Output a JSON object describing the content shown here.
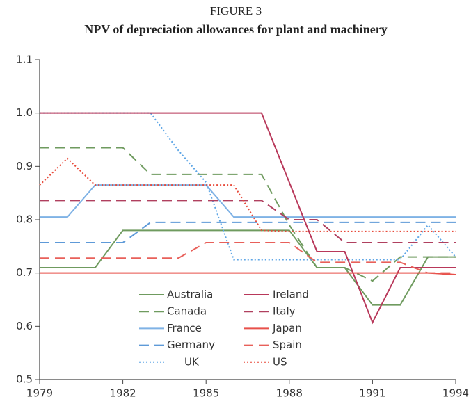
{
  "chart_data": {
    "type": "line",
    "title": "FIGURE 3",
    "subtitle": "NPV of depreciation allowances for plant and machinery",
    "x": [
      1979,
      1980,
      1981,
      1982,
      1983,
      1984,
      1985,
      1986,
      1987,
      1988,
      1989,
      1990,
      1991,
      1992,
      1993,
      1994
    ],
    "xlim": [
      1979,
      1994
    ],
    "xticks": [
      1979,
      1982,
      1985,
      1988,
      1991,
      1994
    ],
    "ylim": [
      0.5,
      1.1
    ],
    "yticks": [
      0.5,
      0.6,
      0.7,
      0.8,
      0.9,
      {
        "value": 1,
        "label": "1.0"
      },
      1.1
    ],
    "series": [
      {
        "name": "Australia",
        "color": "#6f9b5f",
        "dash": "solid",
        "values": [
          0.71,
          0.71,
          0.71,
          0.78,
          0.78,
          0.78,
          0.78,
          0.78,
          0.78,
          0.78,
          0.71,
          0.71,
          0.64,
          0.64,
          0.73,
          0.73
        ]
      },
      {
        "name": "Canada",
        "color": "#6f9b5f",
        "dash": "dashed",
        "values": [
          0.935,
          0.935,
          0.935,
          0.935,
          0.885,
          0.885,
          0.885,
          0.885,
          0.885,
          0.79,
          0.71,
          0.71,
          0.685,
          0.73,
          0.73,
          0.73
        ]
      },
      {
        "name": "France",
        "color": "#7fb2e5",
        "dash": "solid",
        "values": [
          0.805,
          0.805,
          0.865,
          0.865,
          0.865,
          0.865,
          0.865,
          0.805,
          0.805,
          0.805,
          0.805,
          0.805,
          0.805,
          0.805,
          0.805,
          0.805
        ]
      },
      {
        "name": "Germany",
        "color": "#5e9ad8",
        "dash": "dashed",
        "values": [
          0.757,
          0.757,
          0.757,
          0.757,
          0.795,
          0.795,
          0.795,
          0.795,
          0.795,
          0.795,
          0.795,
          0.795,
          0.795,
          0.795,
          0.795,
          0.795
        ]
      },
      {
        "name": "UK",
        "color": "#5ea6e6",
        "dash": "dotted",
        "values": [
          1.0,
          1.0,
          1.0,
          1.0,
          1.0,
          0.93,
          0.87,
          0.725,
          0.725,
          0.725,
          0.725,
          0.725,
          0.725,
          0.725,
          0.79,
          0.73
        ]
      },
      {
        "name": "Ireland",
        "color": "#b8385a",
        "dash": "solid",
        "values": [
          1.0,
          1.0,
          1.0,
          1.0,
          1.0,
          1.0,
          1.0,
          1.0,
          1.0,
          0.87,
          0.74,
          0.74,
          0.607,
          0.71,
          0.71,
          0.71
        ]
      },
      {
        "name": "Italy",
        "color": "#b0405f",
        "dash": "dashed",
        "values": [
          0.836,
          0.836,
          0.836,
          0.836,
          0.836,
          0.836,
          0.836,
          0.836,
          0.836,
          0.8,
          0.8,
          0.757,
          0.757,
          0.757,
          0.757,
          0.757
        ]
      },
      {
        "name": "Japan",
        "color": "#e8504a",
        "dash": "solid",
        "values": [
          0.7,
          0.7,
          0.7,
          0.7,
          0.7,
          0.7,
          0.7,
          0.7,
          0.7,
          0.7,
          0.7,
          0.7,
          0.7,
          0.7,
          0.7,
          0.697
        ]
      },
      {
        "name": "Spain",
        "color": "#e8605a",
        "dash": "dashed",
        "values": [
          0.728,
          0.728,
          0.728,
          0.728,
          0.728,
          0.728,
          0.757,
          0.757,
          0.757,
          0.757,
          0.72,
          0.72,
          0.72,
          0.72,
          0.7,
          0.7
        ]
      },
      {
        "name": "US",
        "color": "#e84a3a",
        "dash": "dotted",
        "values": [
          0.865,
          0.915,
          0.865,
          0.865,
          0.865,
          0.865,
          0.865,
          0.865,
          0.78,
          0.778,
          0.778,
          0.778,
          0.778,
          0.778,
          0.778,
          0.778
        ]
      }
    ]
  }
}
